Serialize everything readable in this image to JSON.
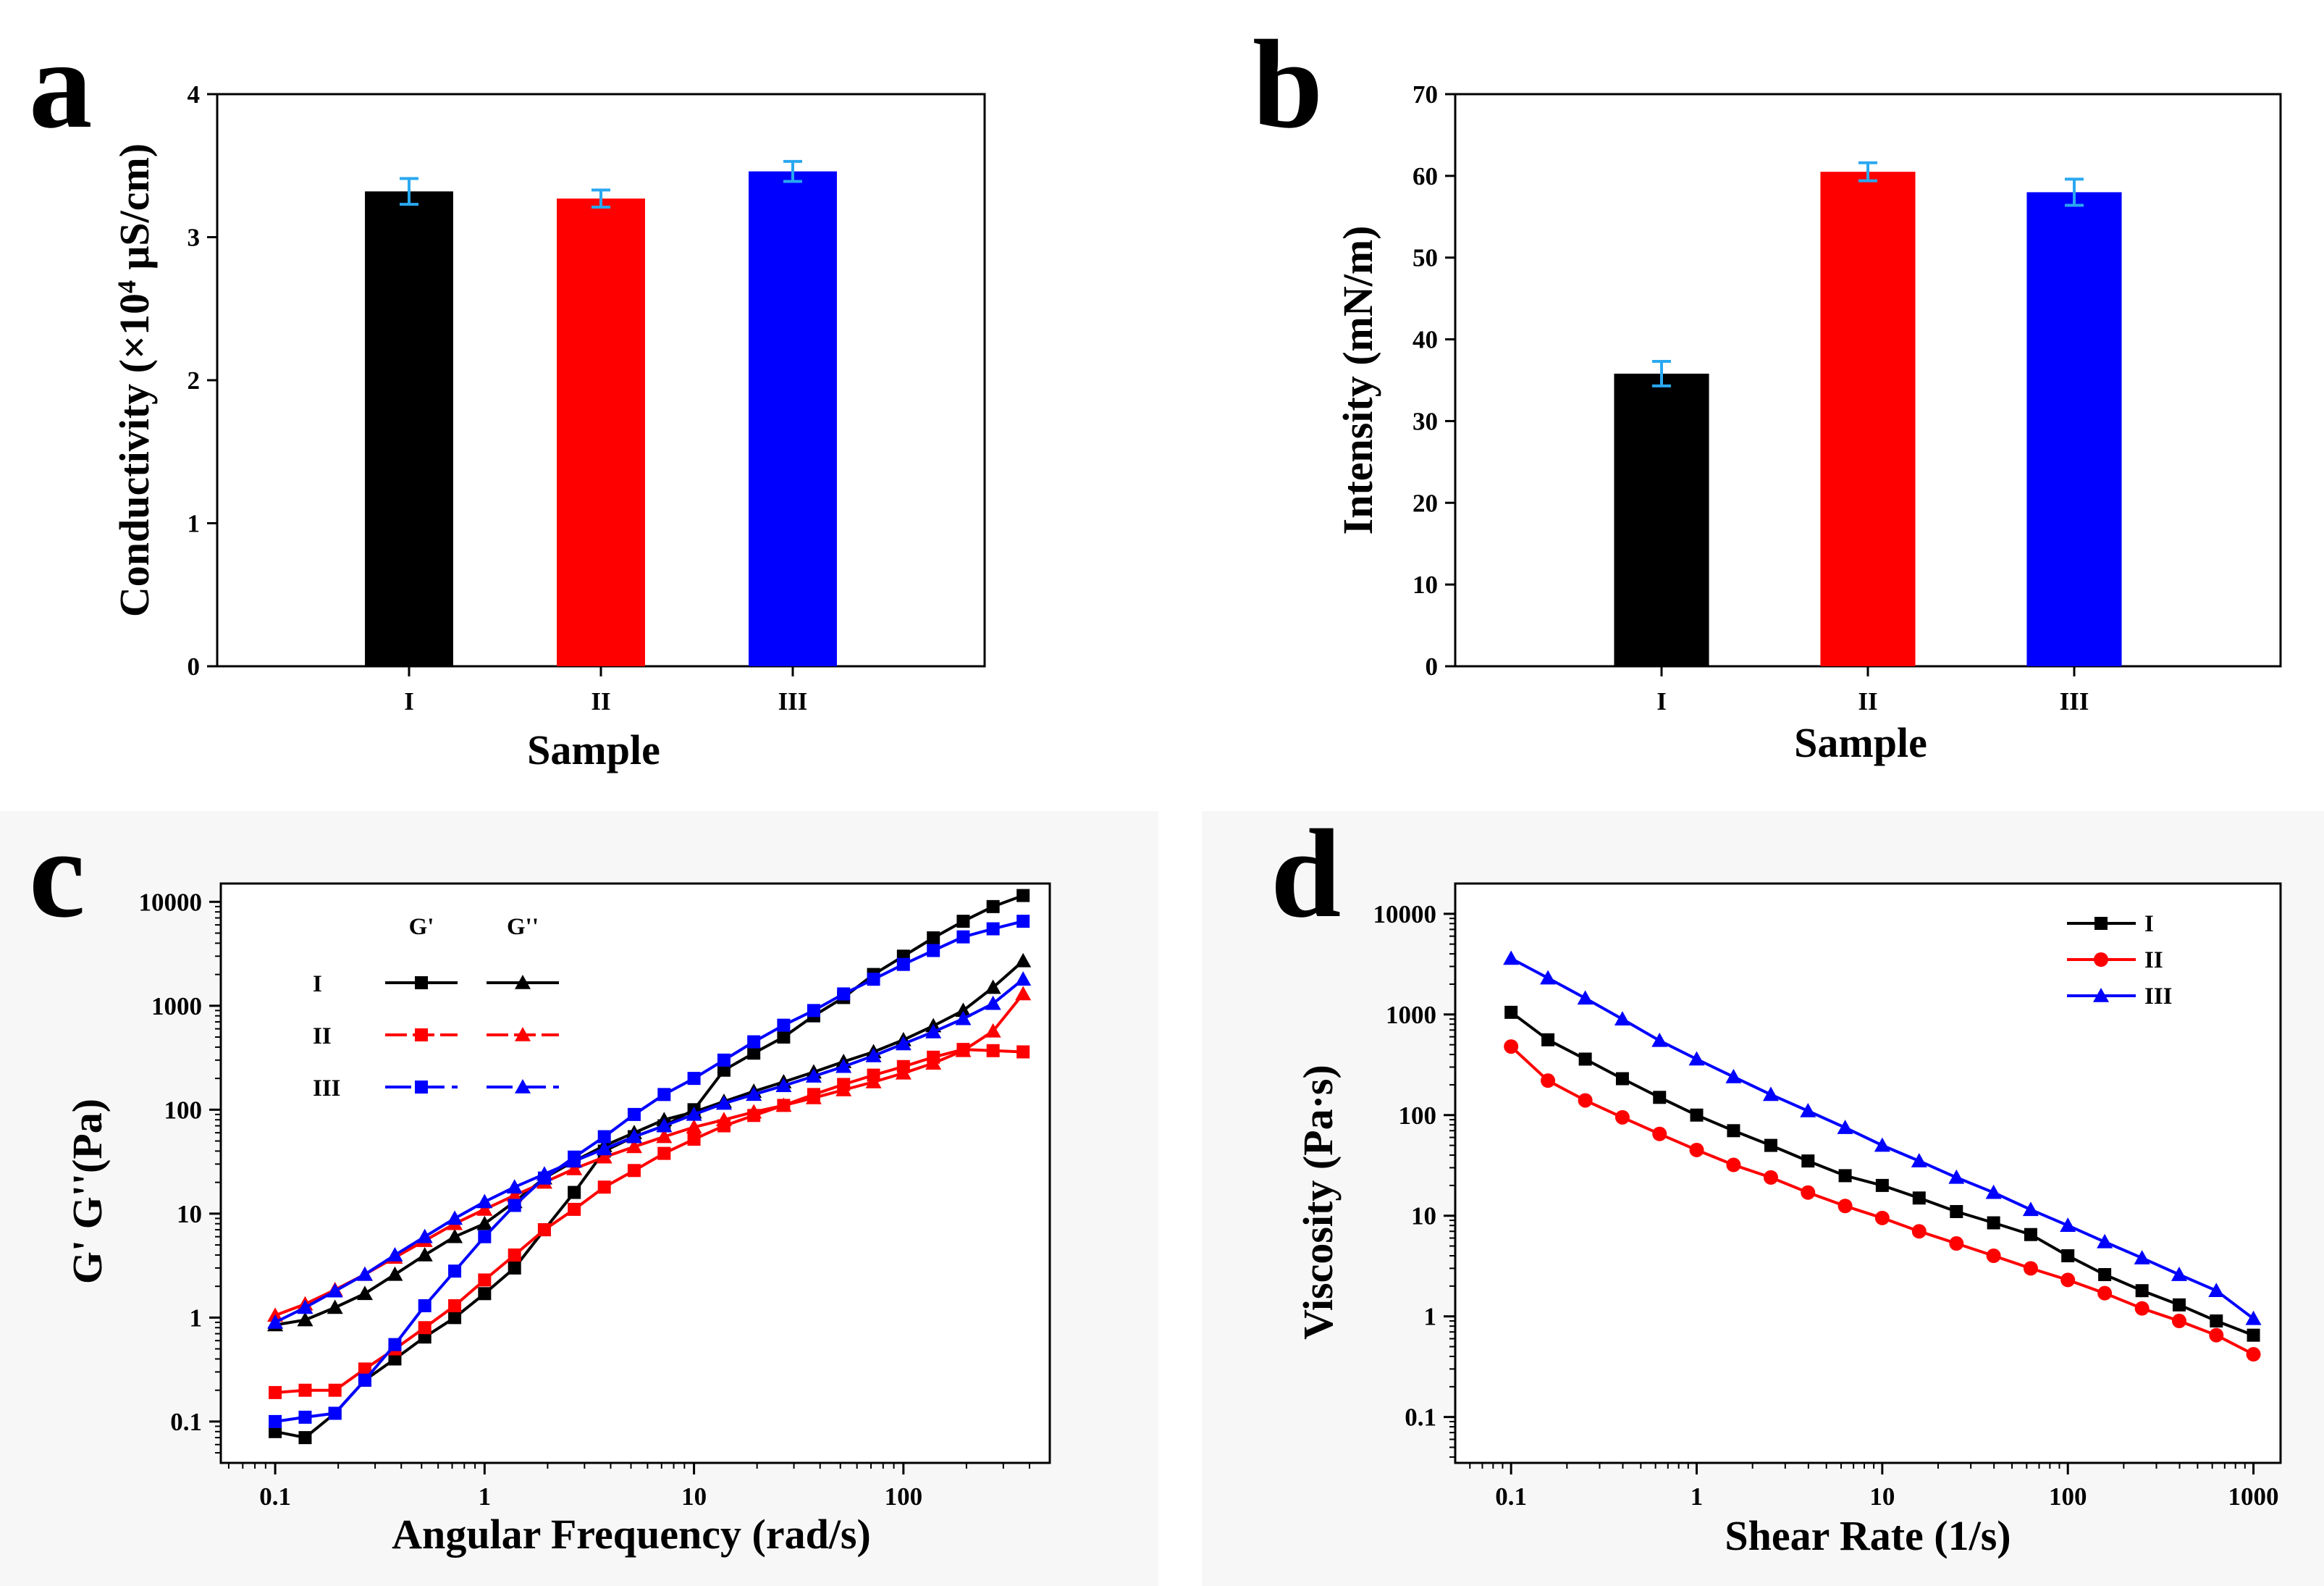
{
  "colors": {
    "black": "#000000",
    "red": "#ff0000",
    "blue": "#0000ff",
    "error_bar": "#2aa8f0"
  },
  "chart_data": [
    {
      "panel": "a",
      "type": "bar",
      "categories": [
        "I",
        "II",
        "III"
      ],
      "values": [
        3.32,
        3.27,
        3.46
      ],
      "errors": [
        0.09,
        0.06,
        0.07
      ],
      "bar_colors": [
        "#000000",
        "#ff0000",
        "#0000ff"
      ],
      "xlabel": "Sample",
      "ylabel": "Conductivity (×10",
      "ylabel_sup": "4",
      "ylabel_unit": " μS/cm)",
      "ylim": [
        0,
        4
      ],
      "yticks": [
        0,
        1,
        2,
        3,
        4
      ],
      "grid": false
    },
    {
      "panel": "b",
      "type": "bar",
      "categories": [
        "I",
        "II",
        "III"
      ],
      "values": [
        35.8,
        60.5,
        58.0
      ],
      "errors": [
        1.5,
        1.1,
        1.6
      ],
      "bar_colors": [
        "#000000",
        "#ff0000",
        "#0000ff"
      ],
      "xlabel": "Sample",
      "ylabel": "Intensity (mN/m)",
      "ylim": [
        0,
        70
      ],
      "yticks": [
        0,
        10,
        20,
        30,
        40,
        50,
        60,
        70
      ],
      "grid": false
    },
    {
      "panel": "c",
      "type": "line",
      "xscale": "log",
      "yscale": "log",
      "xlabel": "Angular Frequency (rad/s)",
      "ylabel": "G' G''(Pa)",
      "xlim": [
        0.055,
        500
      ],
      "ylim": [
        0.04,
        15000
      ],
      "xticks": [
        0.1,
        1,
        10,
        100
      ],
      "xtick_labels": [
        "0.1",
        "1",
        "10",
        "100"
      ],
      "yticks": [
        0.1,
        1,
        10,
        100,
        1000,
        10000
      ],
      "ytick_labels": [
        "0.1",
        "1",
        "10",
        "100",
        "1000",
        "10000"
      ],
      "legend": {
        "position": "top-left",
        "headers": [
          "G'",
          "G''"
        ],
        "rows": [
          {
            "label": "I",
            "color": "#000000"
          },
          {
            "label": "II",
            "color": "#ff0000"
          },
          {
            "label": "III",
            "color": "#0000ff"
          }
        ]
      },
      "x": [
        0.1,
        0.139,
        0.193,
        0.268,
        0.373,
        0.518,
        0.72,
        1.0,
        1.39,
        1.93,
        2.68,
        3.73,
        5.18,
        7.2,
        10,
        13.9,
        19.3,
        26.8,
        37.3,
        51.8,
        72,
        100,
        139,
        193,
        268,
        373
      ],
      "series": [
        {
          "name": "I G'",
          "sample": "I",
          "modulus": "G'",
          "color": "#000000",
          "marker": "square",
          "values": [
            0.08,
            0.07,
            0.12,
            0.25,
            0.4,
            0.65,
            1.0,
            1.7,
            3.0,
            7.0,
            16,
            40,
            55,
            70,
            100,
            240,
            350,
            500,
            800,
            1200,
            2000,
            3000,
            4500,
            6500,
            9000,
            11500
          ]
        },
        {
          "name": "I G''",
          "sample": "I",
          "modulus": "G''",
          "color": "#000000",
          "marker": "triangle",
          "values": [
            0.85,
            0.95,
            1.25,
            1.7,
            2.6,
            4.0,
            6.0,
            8.0,
            13,
            22,
            32,
            45,
            60,
            80,
            95,
            120,
            150,
            185,
            230,
            290,
            360,
            470,
            640,
            900,
            1500,
            2700
          ]
        },
        {
          "name": "II G'",
          "sample": "II",
          "modulus": "G'",
          "color": "#ff0000",
          "marker": "square",
          "values": [
            0.19,
            0.2,
            0.2,
            0.32,
            0.5,
            0.8,
            1.3,
            2.3,
            4.0,
            7.0,
            11,
            18,
            26,
            38,
            52,
            70,
            88,
            110,
            140,
            175,
            215,
            260,
            320,
            380,
            370,
            360
          ]
        },
        {
          "name": "II G''",
          "sample": "II",
          "modulus": "G''",
          "color": "#ff0000",
          "marker": "triangle",
          "values": [
            1.05,
            1.35,
            1.85,
            2.6,
            3.8,
            5.5,
            8.0,
            11,
            15,
            20,
            27,
            35,
            44,
            55,
            68,
            80,
            95,
            110,
            130,
            155,
            185,
            225,
            280,
            370,
            570,
            1300
          ]
        },
        {
          "name": "III G'",
          "sample": "III",
          "modulus": "G'",
          "color": "#0000ff",
          "marker": "square",
          "values": [
            0.1,
            0.11,
            0.12,
            0.25,
            0.55,
            1.3,
            2.8,
            6.0,
            12,
            22,
            35,
            55,
            90,
            140,
            200,
            300,
            450,
            650,
            900,
            1300,
            1800,
            2500,
            3400,
            4600,
            5500,
            6500
          ]
        },
        {
          "name": "III G''",
          "sample": "III",
          "modulus": "G''",
          "color": "#0000ff",
          "marker": "triangle",
          "values": [
            0.9,
            1.25,
            1.8,
            2.6,
            4.0,
            6.0,
            9.0,
            13,
            18,
            24,
            32,
            42,
            55,
            70,
            90,
            115,
            140,
            170,
            210,
            260,
            330,
            430,
            560,
            750,
            1050,
            1800
          ]
        }
      ]
    },
    {
      "panel": "d",
      "type": "line",
      "xscale": "log",
      "yscale": "log",
      "xlabel": "Shear Rate (1/s)",
      "ylabel": "Viscosity (Pa·s)",
      "xlim": [
        0.05,
        1400
      ],
      "ylim": [
        0.035,
        20000
      ],
      "xticks": [
        0.1,
        1,
        10,
        100,
        1000
      ],
      "xtick_labels": [
        "0.1",
        "1",
        "10",
        "100",
        "1000"
      ],
      "yticks": [
        0.1,
        1,
        10,
        100,
        1000,
        10000
      ],
      "ytick_labels": [
        "0.1",
        "1",
        "10",
        "100",
        "1000",
        "10000"
      ],
      "legend": {
        "position": "top-right"
      },
      "x": [
        0.1,
        0.158,
        0.251,
        0.398,
        0.631,
        1.0,
        1.58,
        2.51,
        3.98,
        6.31,
        10,
        15.8,
        25.1,
        39.8,
        63.1,
        100,
        158,
        251,
        398,
        631,
        1000
      ],
      "series": [
        {
          "name": "I",
          "color": "#000000",
          "marker": "square",
          "values": [
            1050,
            560,
            360,
            230,
            150,
            100,
            70,
            50,
            35,
            25,
            20,
            15,
            11,
            8.5,
            6.5,
            4.0,
            2.6,
            1.8,
            1.3,
            0.9,
            0.65
          ]
        },
        {
          "name": "II",
          "color": "#ff0000",
          "marker": "circle",
          "values": [
            480,
            220,
            140,
            95,
            65,
            45,
            32,
            24,
            17,
            12.5,
            9.5,
            7.0,
            5.3,
            4.0,
            3.0,
            2.3,
            1.7,
            1.2,
            0.9,
            0.65,
            0.42
          ]
        },
        {
          "name": "III",
          "color": "#0000ff",
          "marker": "triangle",
          "values": [
            3600,
            2300,
            1450,
            900,
            550,
            360,
            240,
            160,
            110,
            75,
            50,
            35,
            24,
            17,
            11.5,
            8.0,
            5.5,
            3.8,
            2.6,
            1.8,
            0.95
          ]
        }
      ]
    }
  ]
}
